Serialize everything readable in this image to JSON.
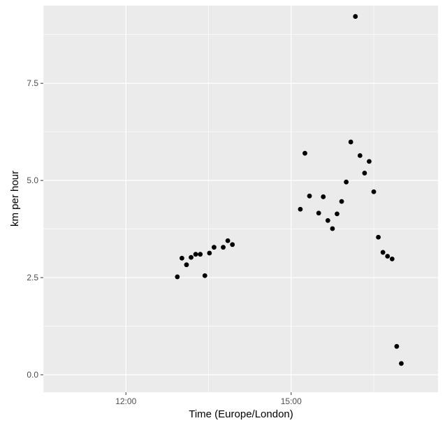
{
  "chart_data": {
    "type": "scatter",
    "xlabel": "Time (Europe/London)",
    "ylabel": "km per hour",
    "x_axis_kind": "time",
    "xlim": [
      "10:30",
      "17:40"
    ],
    "ylim": [
      -0.45,
      9.5
    ],
    "x_ticks": [
      {
        "value": "12:00",
        "label": "12:00"
      },
      {
        "value": "15:00",
        "label": "15:00"
      }
    ],
    "x_minor_ticks": [
      "10:30",
      "13:30",
      "16:30"
    ],
    "y_ticks": [
      {
        "value": 0,
        "label": "0.0"
      },
      {
        "value": 2.5,
        "label": "2.5"
      },
      {
        "value": 5,
        "label": "5.0"
      },
      {
        "value": 7.5,
        "label": "7.5"
      }
    ],
    "y_minor_ticks": [
      1.25,
      3.75,
      6.25,
      8.75
    ],
    "grid": true,
    "colors": {
      "panel": "#ebebeb",
      "grid": "#ffffff",
      "point": "#000000"
    },
    "series": [
      {
        "points": [
          {
            "x": "12:56",
            "y": 2.52
          },
          {
            "x": "13:01",
            "y": 3.0
          },
          {
            "x": "13:06",
            "y": 2.83
          },
          {
            "x": "13:11",
            "y": 3.02
          },
          {
            "x": "13:16",
            "y": 3.1
          },
          {
            "x": "13:21",
            "y": 3.1
          },
          {
            "x": "13:26",
            "y": 2.55
          },
          {
            "x": "13:31",
            "y": 3.13
          },
          {
            "x": "13:36",
            "y": 3.28
          },
          {
            "x": "13:46",
            "y": 3.28
          },
          {
            "x": "13:51",
            "y": 3.45
          },
          {
            "x": "13:56",
            "y": 3.35
          },
          {
            "x": "15:10",
            "y": 4.26
          },
          {
            "x": "15:15",
            "y": 5.7
          },
          {
            "x": "15:20",
            "y": 4.6
          },
          {
            "x": "15:30",
            "y": 4.16
          },
          {
            "x": "15:35",
            "y": 4.58
          },
          {
            "x": "15:40",
            "y": 3.97
          },
          {
            "x": "15:45",
            "y": 3.76
          },
          {
            "x": "15:50",
            "y": 4.14
          },
          {
            "x": "15:55",
            "y": 4.46
          },
          {
            "x": "16:00",
            "y": 4.96
          },
          {
            "x": "16:05",
            "y": 5.99
          },
          {
            "x": "16:10",
            "y": 9.22
          },
          {
            "x": "16:15",
            "y": 5.64
          },
          {
            "x": "16:20",
            "y": 5.19
          },
          {
            "x": "16:25",
            "y": 5.49
          },
          {
            "x": "16:30",
            "y": 4.71
          },
          {
            "x": "16:35",
            "y": 3.54
          },
          {
            "x": "16:40",
            "y": 3.15
          },
          {
            "x": "16:45",
            "y": 3.05
          },
          {
            "x": "16:50",
            "y": 2.98
          },
          {
            "x": "16:55",
            "y": 0.73
          },
          {
            "x": "17:00",
            "y": 0.29
          }
        ]
      }
    ]
  }
}
